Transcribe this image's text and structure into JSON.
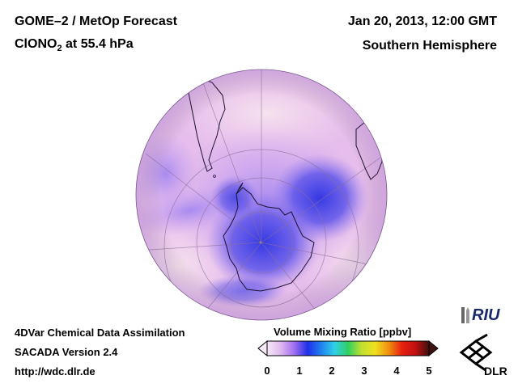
{
  "header": {
    "title_line1": "GOME–2 / MetOp Forecast",
    "title_species": "ClONO",
    "title_subscript": "2",
    "title_level": " at 55.4 hPa",
    "date": "Jan 20, 2013, 12:00 GMT",
    "region": "Southern Hemisphere"
  },
  "footer": {
    "line1": "4DVar Chemical Data Assimilation",
    "line2": "SACADA Version 2.4",
    "line3": "http://wdc.dlr.de"
  },
  "colorbar": {
    "title": "Volume Mixing Ratio [ppbv]",
    "min": 0,
    "max": 5,
    "ticks": [
      "0",
      "1",
      "2",
      "3",
      "4",
      "5"
    ],
    "colors": [
      "#f4eaf6",
      "#e0b8f0",
      "#a070f0",
      "#2030e8",
      "#2080f0",
      "#30d0e8",
      "#30d060",
      "#c0e030",
      "#f0e020",
      "#f09010",
      "#e82010",
      "#c01010",
      "#401010"
    ]
  },
  "logos": {
    "riu": "RIU",
    "dlr": "DLR"
  },
  "map": {
    "projection": "orthographic",
    "center": "South Pole",
    "colors": {
      "background": "#e8c2ec",
      "low": "#3a3ee6",
      "mid": "#9a78ee",
      "high": "#f2dcee"
    }
  }
}
